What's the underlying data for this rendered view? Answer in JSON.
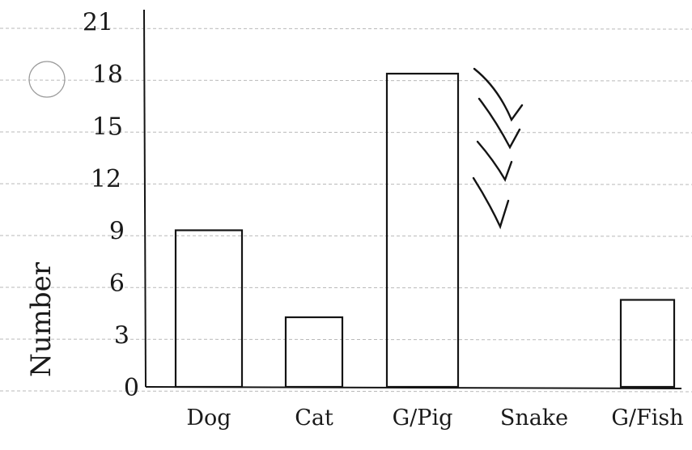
{
  "chart_data": {
    "type": "bar",
    "title": "",
    "xlabel": "",
    "ylabel": "Number",
    "categories": [
      "Dog",
      "Cat",
      "G/Pig",
      "Snake",
      "G/Fish"
    ],
    "values": [
      9,
      4,
      18,
      0,
      5
    ],
    "ylim": [
      0,
      21
    ],
    "yticks": [
      "0",
      "3",
      "6",
      "9",
      "12",
      "15",
      "18",
      "21"
    ],
    "grid": true,
    "bar_color": "#141414",
    "line_color": "#b9b9b9"
  }
}
